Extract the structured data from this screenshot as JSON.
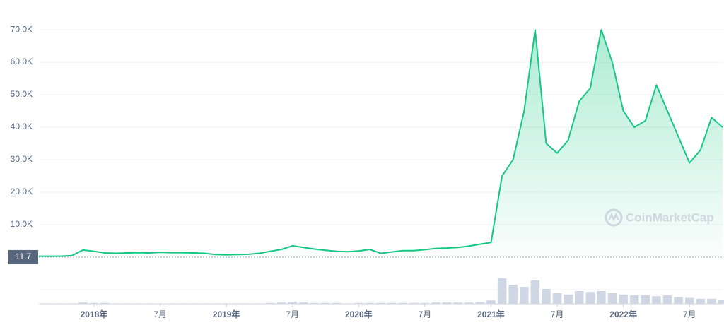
{
  "chart_data": {
    "type": "area",
    "watermark": "CoinMarketCap",
    "reference_value": 11.7,
    "color": "#16c784",
    "volume_color": "#cfd6e4",
    "x": [
      "2017-08",
      "2017-09",
      "2017-10",
      "2017-11",
      "2017-12",
      "2018-01",
      "2018-02",
      "2018-03",
      "2018-04",
      "2018-05",
      "2018-06",
      "2018-07",
      "2018-08",
      "2018-09",
      "2018-10",
      "2018-11",
      "2018-12",
      "2019-01",
      "2019-02",
      "2019-03",
      "2019-04",
      "2019-05",
      "2019-06",
      "2019-07",
      "2019-08",
      "2019-09",
      "2019-10",
      "2019-11",
      "2019-12",
      "2020-01",
      "2020-02",
      "2020-03",
      "2020-04",
      "2020-05",
      "2020-06",
      "2020-07",
      "2020-08",
      "2020-09",
      "2020-10",
      "2020-11",
      "2020-12",
      "2021-01",
      "2021-02",
      "2021-03",
      "2021-04",
      "2021-05",
      "2021-06",
      "2021-07",
      "2021-08",
      "2021-09",
      "2021-10",
      "2021-11",
      "2021-12",
      "2022-01",
      "2022-02",
      "2022-03",
      "2022-04",
      "2022-05",
      "2022-06",
      "2022-07",
      "2022-08",
      "2022-09",
      "2022-10"
    ],
    "values": [
      300,
      300,
      300,
      500,
      2200,
      1800,
      1300,
      1200,
      1300,
      1400,
      1300,
      1500,
      1400,
      1400,
      1300,
      1200,
      800,
      700,
      800,
      900,
      1200,
      1800,
      2400,
      3500,
      3000,
      2500,
      2100,
      1800,
      1700,
      1900,
      2400,
      1200,
      1600,
      2000,
      2000,
      2300,
      2700,
      2800,
      3000,
      3400,
      4000,
      4500,
      25000,
      30000,
      45000,
      70000,
      35000,
      32000,
      36000,
      48000,
      52000,
      70000,
      60000,
      45000,
      40000,
      42000,
      53000,
      45000,
      37000,
      29000,
      33000,
      43000,
      40000
    ],
    "volume": [
      1,
      1,
      1,
      1,
      3,
      2,
      2,
      1,
      1,
      1,
      1,
      1,
      1,
      1,
      1,
      1,
      1,
      1,
      1,
      1,
      1,
      2,
      3,
      5,
      3,
      2,
      2,
      2,
      1,
      2,
      2,
      2,
      2,
      2,
      2,
      2,
      3,
      3,
      3,
      3,
      4,
      8,
      60,
      45,
      40,
      55,
      35,
      25,
      22,
      30,
      28,
      30,
      25,
      22,
      20,
      20,
      18,
      20,
      16,
      14,
      12,
      12,
      10
    ],
    "vlim": [
      0,
      100
    ],
    "xlim": [
      "2017-08",
      "2022-10"
    ],
    "xticks": [
      {
        "value": "2018-01",
        "label": "2018年"
      },
      {
        "value": "2018-07",
        "label": "7月"
      },
      {
        "value": "2019-01",
        "label": "2019年"
      },
      {
        "value": "2019-07",
        "label": "7月"
      },
      {
        "value": "2020-01",
        "label": "2020年"
      },
      {
        "value": "2020-07",
        "label": "7月"
      },
      {
        "value": "2021-01",
        "label": "2021年"
      },
      {
        "value": "2021-07",
        "label": "7月"
      },
      {
        "value": "2022-01",
        "label": "2022年"
      },
      {
        "value": "2022-07",
        "label": "7月"
      }
    ],
    "ylim": [
      0,
      78500
    ],
    "yticks": [
      {
        "value": 10000,
        "label": "10.0K"
      },
      {
        "value": 20000,
        "label": "20.0K"
      },
      {
        "value": 30000,
        "label": "30.0K"
      },
      {
        "value": 40000,
        "label": "40.0K"
      },
      {
        "value": 50000,
        "label": "50.0K"
      },
      {
        "value": 60000,
        "label": "60.0K"
      },
      {
        "value": 70000,
        "label": "70.0K"
      }
    ],
    "grid": true
  }
}
